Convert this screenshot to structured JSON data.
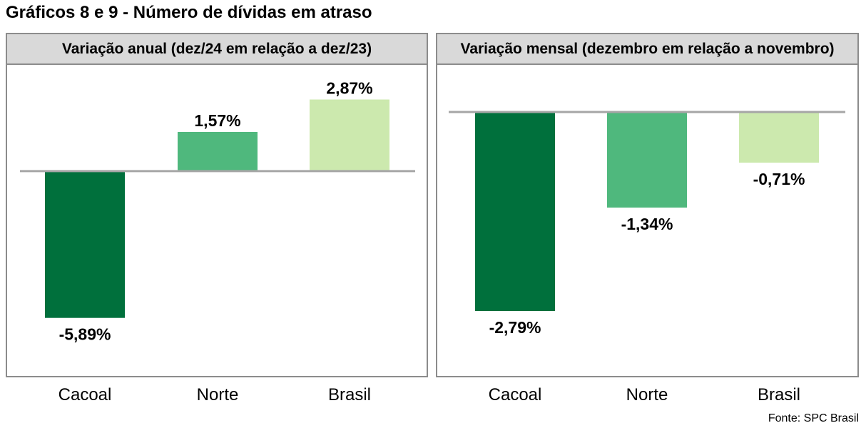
{
  "page": {
    "title": "Gráficos 8 e 9 - Número de dívidas em atraso",
    "source": "Fonte: SPC Brasil"
  },
  "chart_data": [
    {
      "type": "bar",
      "title": "Variação anual (dez/24 em relação a dez/23)",
      "categories": [
        "Cacoal",
        "Norte",
        "Brasil"
      ],
      "values": [
        -5.89,
        1.57,
        2.87
      ],
      "labels": [
        "-5,89%",
        "1,57%",
        "2,87%"
      ],
      "colors": [
        "#00703c",
        "#4fb87d",
        "#cce9ae"
      ],
      "ylim": [
        -6.5,
        3.8
      ],
      "grid": false
    },
    {
      "type": "bar",
      "title": "Variação mensal (dezembro em relação a novembro)",
      "categories": [
        "Cacoal",
        "Norte",
        "Brasil"
      ],
      "values": [
        -2.79,
        -1.34,
        -0.71
      ],
      "labels": [
        "-2,79%",
        "-1,34%",
        "-0,71%"
      ],
      "colors": [
        "#00703c",
        "#4fb87d",
        "#cce9ae"
      ],
      "ylim": [
        -3.1,
        0.5
      ],
      "grid": false
    }
  ]
}
